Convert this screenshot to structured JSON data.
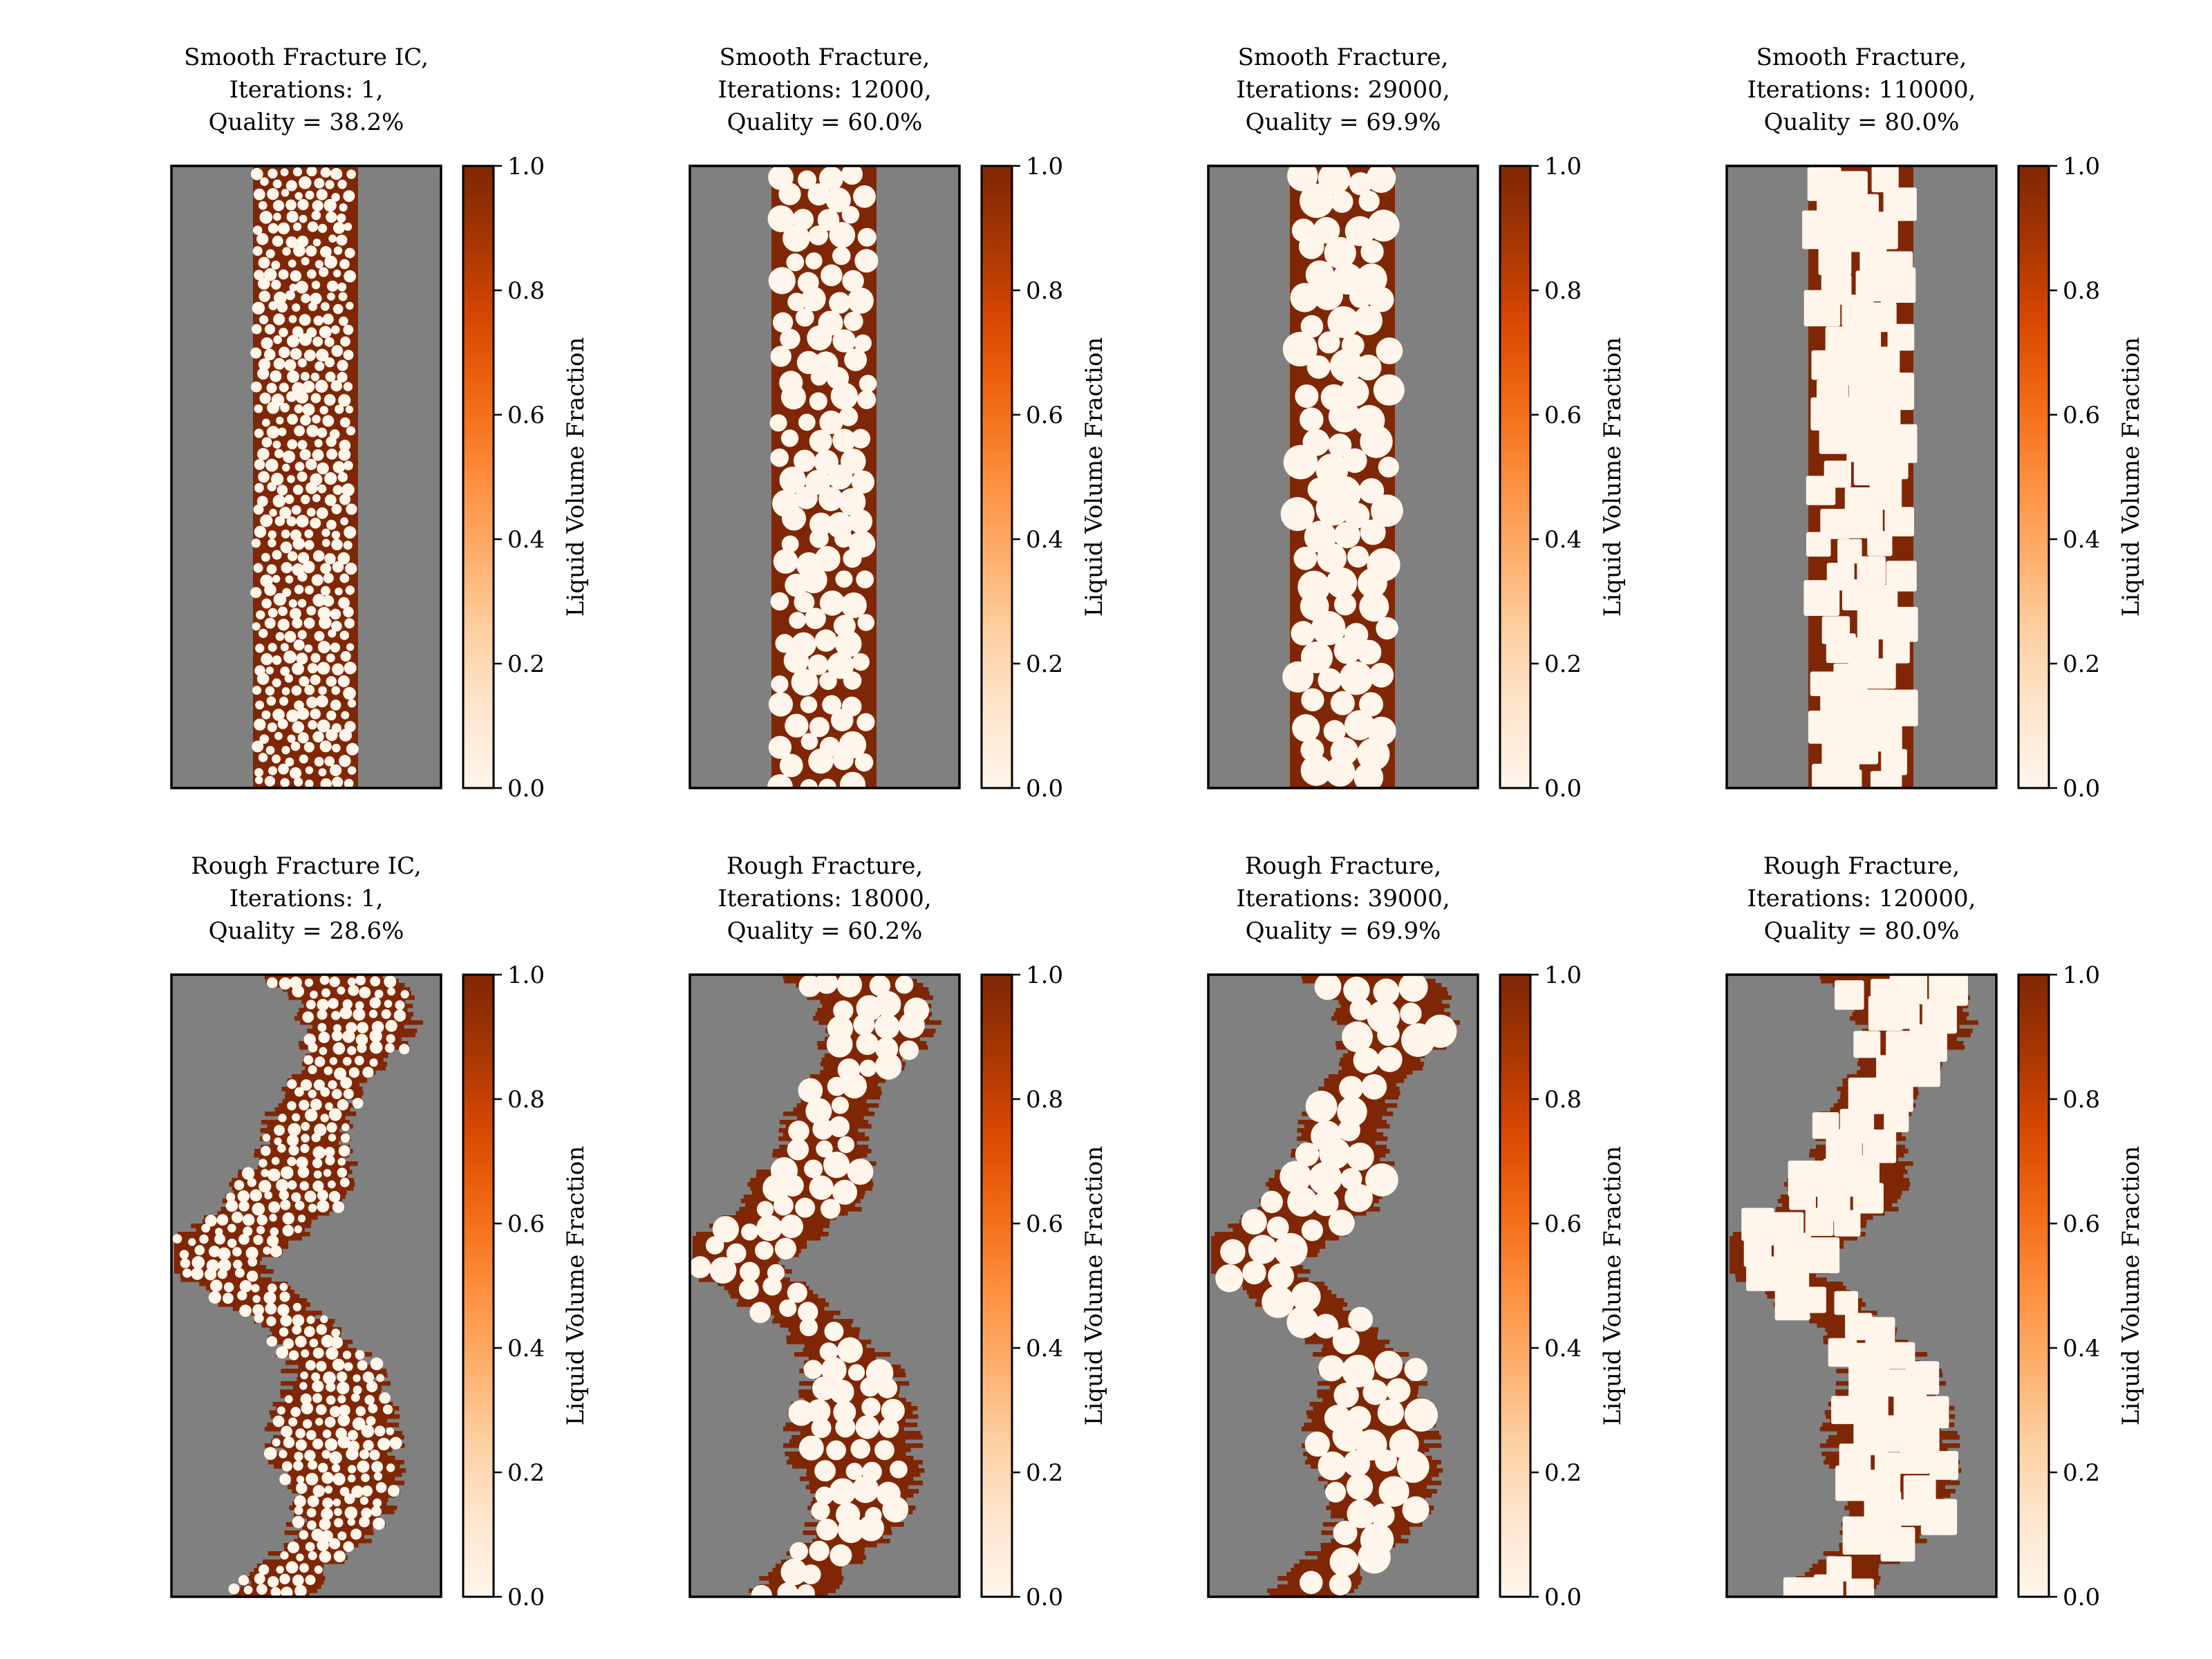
{
  "figure": {
    "colormap": "Oranges",
    "solid_color": "#808080",
    "colormap_stops": [
      "#fff5eb",
      "#fee6ce",
      "#fdd0a2",
      "#fdae6b",
      "#fd8d3c",
      "#f16913",
      "#d94801",
      "#a63603",
      "#7f2704"
    ]
  },
  "chart_data": [
    {
      "type": "heatmap",
      "row": 0,
      "col": 0,
      "title_lines": [
        "Smooth Fracture IC,",
        "Iterations: 1,",
        "Quality = 38.2%"
      ],
      "fracture": "smooth",
      "iterations": 1,
      "quality_percent": 38.2,
      "colorbar_label": "Liquid Volume Fraction",
      "colorbar_ticks": [
        "0.0",
        "0.2",
        "0.4",
        "0.6",
        "0.8",
        "1.0"
      ],
      "clim": [
        0.0,
        1.0
      ]
    },
    {
      "type": "heatmap",
      "row": 0,
      "col": 1,
      "title_lines": [
        "Smooth Fracture,",
        "Iterations: 12000,",
        "Quality = 60.0%"
      ],
      "fracture": "smooth",
      "iterations": 12000,
      "quality_percent": 60.0,
      "colorbar_label": "Liquid Volume Fraction",
      "colorbar_ticks": [
        "0.0",
        "0.2",
        "0.4",
        "0.6",
        "0.8",
        "1.0"
      ],
      "clim": [
        0.0,
        1.0
      ]
    },
    {
      "type": "heatmap",
      "row": 0,
      "col": 2,
      "title_lines": [
        "Smooth Fracture,",
        "Iterations: 29000,",
        "Quality = 69.9%"
      ],
      "fracture": "smooth",
      "iterations": 29000,
      "quality_percent": 69.9,
      "colorbar_label": "Liquid Volume Fraction",
      "colorbar_ticks": [
        "0.0",
        "0.2",
        "0.4",
        "0.6",
        "0.8",
        "1.0"
      ],
      "clim": [
        0.0,
        1.0
      ]
    },
    {
      "type": "heatmap",
      "row": 0,
      "col": 3,
      "title_lines": [
        "Smooth Fracture,",
        "Iterations: 110000,",
        "Quality = 80.0%"
      ],
      "fracture": "smooth",
      "iterations": 110000,
      "quality_percent": 80.0,
      "colorbar_label": "Liquid Volume Fraction",
      "colorbar_ticks": [
        "0.0",
        "0.2",
        "0.4",
        "0.6",
        "0.8",
        "1.0"
      ],
      "clim": [
        0.0,
        1.0
      ]
    },
    {
      "type": "heatmap",
      "row": 1,
      "col": 0,
      "title_lines": [
        "Rough Fracture IC,",
        "Iterations: 1,",
        "Quality = 28.6%"
      ],
      "fracture": "rough",
      "iterations": 1,
      "quality_percent": 28.6,
      "colorbar_label": "Liquid Volume Fraction",
      "colorbar_ticks": [
        "0.0",
        "0.2",
        "0.4",
        "0.6",
        "0.8",
        "1.0"
      ],
      "clim": [
        0.0,
        1.0
      ]
    },
    {
      "type": "heatmap",
      "row": 1,
      "col": 1,
      "title_lines": [
        "Rough Fracture,",
        "Iterations: 18000,",
        "Quality = 60.2%"
      ],
      "fracture": "rough",
      "iterations": 18000,
      "quality_percent": 60.2,
      "colorbar_label": "Liquid Volume Fraction",
      "colorbar_ticks": [
        "0.0",
        "0.2",
        "0.4",
        "0.6",
        "0.8",
        "1.0"
      ],
      "clim": [
        0.0,
        1.0
      ]
    },
    {
      "type": "heatmap",
      "row": 1,
      "col": 2,
      "title_lines": [
        "Rough Fracture,",
        "Iterations: 39000,",
        "Quality = 69.9%"
      ],
      "fracture": "rough",
      "iterations": 39000,
      "quality_percent": 69.9,
      "colorbar_label": "Liquid Volume Fraction",
      "colorbar_ticks": [
        "0.0",
        "0.2",
        "0.4",
        "0.6",
        "0.8",
        "1.0"
      ],
      "clim": [
        0.0,
        1.0
      ]
    },
    {
      "type": "heatmap",
      "row": 1,
      "col": 3,
      "title_lines": [
        "Rough Fracture,",
        "Iterations: 120000,",
        "Quality = 80.0%"
      ],
      "fracture": "rough",
      "iterations": 120000,
      "quality_percent": 80.0,
      "colorbar_label": "Liquid Volume Fraction",
      "colorbar_ticks": [
        "0.0",
        "0.2",
        "0.4",
        "0.6",
        "0.8",
        "1.0"
      ],
      "clim": [
        0.0,
        1.0
      ]
    }
  ]
}
